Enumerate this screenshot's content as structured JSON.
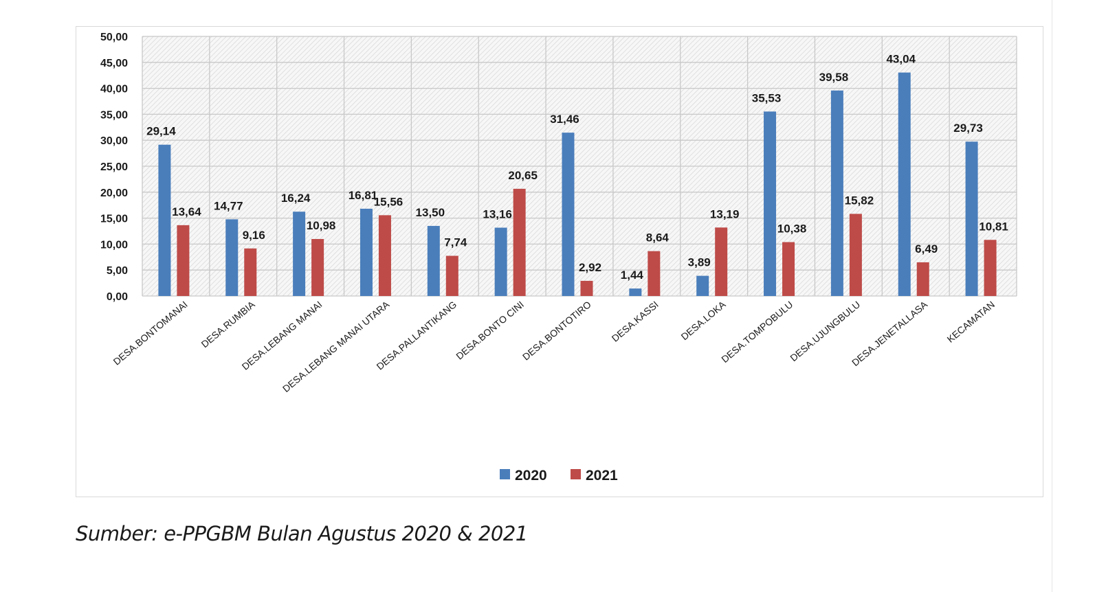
{
  "chart_data": {
    "type": "bar",
    "categories": [
      "DESA.BONTOMANAI",
      "DESA.RUMBIA",
      "DESA.LEBANG MANAI",
      "DESA.LEBANG MANAI UTARA",
      "DESA.PALLANTIKANG",
      "DESA.BONTO CINI",
      "DESA.BONTOTIRO",
      "DESA.KASSI",
      "DESA.LOKA",
      "DESA.TOMPOBULU",
      "DESA.UJUNGBULU",
      "DESA.JENETALLASA",
      "KECAMATAN"
    ],
    "series": [
      {
        "name": "2020",
        "color": "#4a7ebb",
        "values": [
          29.14,
          14.77,
          16.24,
          16.81,
          13.5,
          13.16,
          31.46,
          1.44,
          3.89,
          35.53,
          39.58,
          43.04,
          29.73
        ],
        "labels": [
          "29,14",
          "14,77",
          "16,24",
          "16,81",
          "13,50",
          "13,16",
          "31,46",
          "1,44",
          "3,89",
          "35,53",
          "39,58",
          "43,04",
          "29,73"
        ]
      },
      {
        "name": "2021",
        "color": "#be4b48",
        "values": [
          13.64,
          9.16,
          10.98,
          15.56,
          7.74,
          20.65,
          2.92,
          8.64,
          13.19,
          10.38,
          15.82,
          6.49,
          10.81
        ],
        "labels": [
          "13,64",
          "9,16",
          "10,98",
          "15,56",
          "7,74",
          "20,65",
          "2,92",
          "8,64",
          "13,19",
          "10,38",
          "15,82",
          "6,49",
          "10,81"
        ]
      }
    ],
    "ylim": [
      0,
      50
    ],
    "yticks": [
      "0,00",
      "5,00",
      "10,00",
      "15,00",
      "20,00",
      "25,00",
      "30,00",
      "35,00",
      "40,00",
      "45,00",
      "50,00"
    ],
    "grid": true,
    "legend": "bottom-center",
    "title": "",
    "xlabel": "",
    "ylabel": ""
  },
  "source_note": "Sumber: e-PPGBM Bulan Agustus 2020 & 2021"
}
